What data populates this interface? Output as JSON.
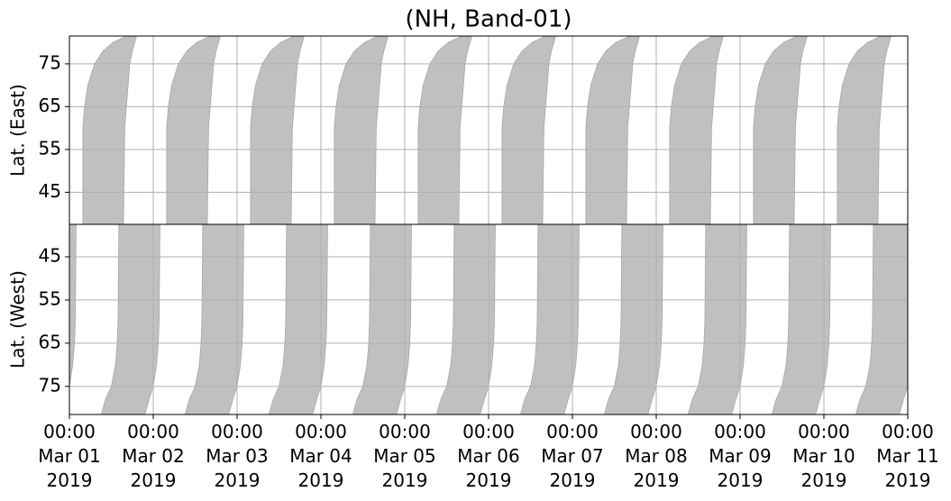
{
  "chart_data": {
    "type": "band",
    "title": "(NH, Band-01)",
    "color": "#c0c0c0",
    "grid": true,
    "xlim": [
      0,
      10
    ],
    "xticks": [
      {
        "value": 0,
        "label": "00:00\nMar 01\n2019"
      },
      {
        "value": 1,
        "label": "00:00\nMar 02\n2019"
      },
      {
        "value": 2,
        "label": "00:00\nMar 03\n2019"
      },
      {
        "value": 3,
        "label": "00:00\nMar 04\n2019"
      },
      {
        "value": 4,
        "label": "00:00\nMar 05\n2019"
      },
      {
        "value": 5,
        "label": "00:00\nMar 06\n2019"
      },
      {
        "value": 6,
        "label": "00:00\nMar 07\n2019"
      },
      {
        "value": 7,
        "label": "00:00\nMar 08\n2019"
      },
      {
        "value": 8,
        "label": "00:00\nMar 09\n2019"
      },
      {
        "value": 9,
        "label": "00:00\nMar 10\n2019"
      },
      {
        "value": 10,
        "label": "00:00\nMar 11\n2019"
      }
    ],
    "days": [
      -1,
      0,
      1,
      2,
      3,
      4,
      5,
      6,
      7,
      8,
      9
    ],
    "panels": [
      {
        "ylabel": "Lat. (East)",
        "ylim": [
          37.5,
          81.5
        ],
        "yticks": [
          45,
          55,
          65,
          75
        ],
        "lat": [
          37.5,
          60,
          65,
          70,
          75,
          78,
          80,
          81.5
        ],
        "start": [
          0.16,
          0.16,
          0.18,
          0.22,
          0.3,
          0.4,
          0.52,
          0.68
        ],
        "end": [
          0.645,
          0.66,
          0.68,
          0.7,
          0.72,
          0.75,
          0.78,
          0.8
        ]
      },
      {
        "ylabel": "Lat. (West)",
        "ylim": [
          81.5,
          37.5
        ],
        "yticks": [
          75,
          65,
          55,
          45
        ],
        "lat": [
          81.5,
          78,
          75,
          70,
          65,
          60,
          37.5
        ],
        "start": [
          0.38,
          0.43,
          0.5,
          0.55,
          0.57,
          0.58,
          0.59
        ],
        "end": [
          0.9,
          0.95,
          1.0,
          1.04,
          1.06,
          1.07,
          1.08
        ]
      }
    ]
  }
}
